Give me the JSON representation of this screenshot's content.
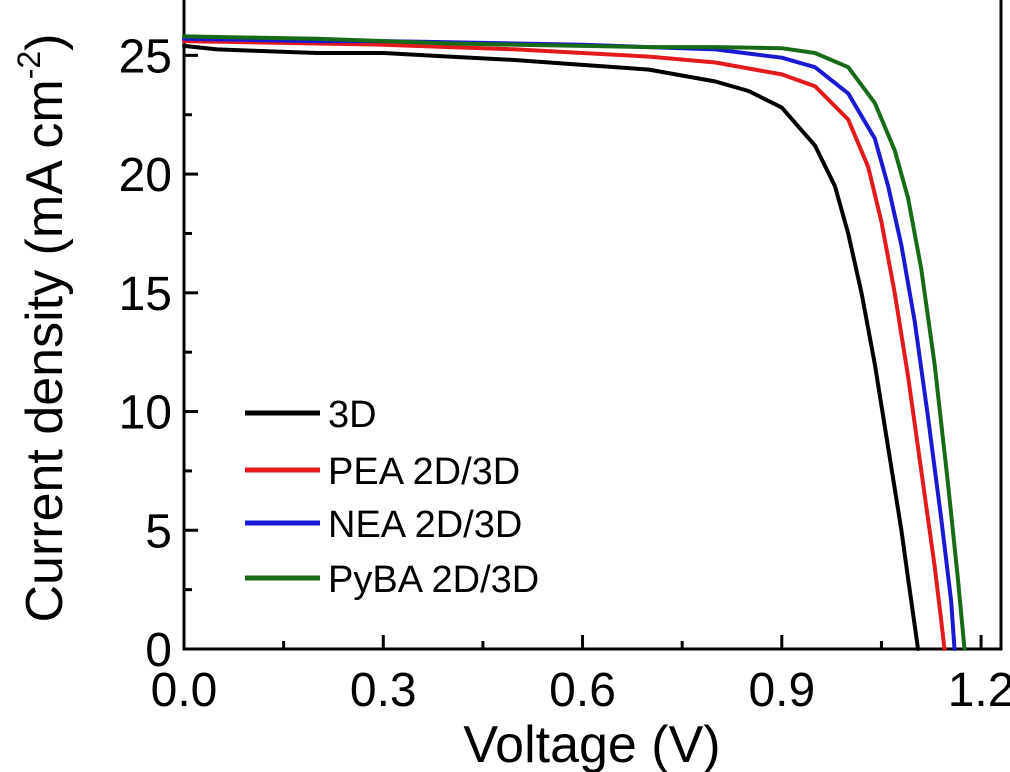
{
  "chart_data": {
    "type": "line",
    "title": "",
    "xlabel": "Voltage (V)",
    "ylabel": "Current density (mA cm",
    "ylabel_superscript": "-2",
    "ylabel_close": ")",
    "xlim": [
      0.0,
      1.23
    ],
    "ylim": [
      0,
      27.5
    ],
    "x_ticks": [
      0.0,
      0.3,
      0.6,
      0.9,
      1.2
    ],
    "x_tick_labels": [
      "0.0",
      "0.3",
      "0.6",
      "0.9",
      "1.2"
    ],
    "y_ticks": [
      0,
      5,
      10,
      15,
      20,
      25
    ],
    "y_tick_labels": [
      "0",
      "5",
      "10",
      "15",
      "20",
      "25"
    ],
    "grid": false,
    "legend_position": "bottom-left",
    "series": [
      {
        "name": "3D",
        "color": "#000000",
        "points": [
          [
            0.0,
            25.4
          ],
          [
            0.05,
            25.25
          ],
          [
            0.1,
            25.2
          ],
          [
            0.2,
            25.1
          ],
          [
            0.3,
            25.1
          ],
          [
            0.4,
            24.95
          ],
          [
            0.5,
            24.8
          ],
          [
            0.6,
            24.6
          ],
          [
            0.7,
            24.4
          ],
          [
            0.8,
            23.9
          ],
          [
            0.85,
            23.5
          ],
          [
            0.9,
            22.8
          ],
          [
            0.95,
            21.2
          ],
          [
            0.98,
            19.5
          ],
          [
            1.0,
            17.5
          ],
          [
            1.02,
            15.0
          ],
          [
            1.04,
            12.0
          ],
          [
            1.06,
            8.5
          ],
          [
            1.08,
            5.0
          ],
          [
            1.09,
            3.0
          ],
          [
            1.1,
            1.0
          ],
          [
            1.105,
            0.0
          ]
        ]
      },
      {
        "name": "PEA 2D/3D",
        "color": "#e3191c",
        "points": [
          [
            0.0,
            25.6
          ],
          [
            0.1,
            25.55
          ],
          [
            0.2,
            25.5
          ],
          [
            0.3,
            25.45
          ],
          [
            0.4,
            25.35
          ],
          [
            0.5,
            25.25
          ],
          [
            0.6,
            25.1
          ],
          [
            0.7,
            24.95
          ],
          [
            0.8,
            24.7
          ],
          [
            0.9,
            24.2
          ],
          [
            0.95,
            23.7
          ],
          [
            1.0,
            22.3
          ],
          [
            1.03,
            20.3
          ],
          [
            1.05,
            18.0
          ],
          [
            1.07,
            15.0
          ],
          [
            1.09,
            11.5
          ],
          [
            1.11,
            7.5
          ],
          [
            1.13,
            3.5
          ],
          [
            1.14,
            1.2
          ],
          [
            1.145,
            0.0
          ]
        ]
      },
      {
        "name": "NEA 2D/3D",
        "color": "#1919d4",
        "points": [
          [
            0.0,
            25.7
          ],
          [
            0.1,
            25.65
          ],
          [
            0.2,
            25.6
          ],
          [
            0.3,
            25.6
          ],
          [
            0.4,
            25.55
          ],
          [
            0.5,
            25.5
          ],
          [
            0.6,
            25.45
          ],
          [
            0.7,
            25.35
          ],
          [
            0.8,
            25.25
          ],
          [
            0.9,
            24.9
          ],
          [
            0.95,
            24.5
          ],
          [
            1.0,
            23.4
          ],
          [
            1.04,
            21.5
          ],
          [
            1.06,
            19.5
          ],
          [
            1.08,
            17.0
          ],
          [
            1.1,
            13.8
          ],
          [
            1.12,
            9.8
          ],
          [
            1.14,
            5.5
          ],
          [
            1.155,
            2.0
          ],
          [
            1.16,
            0.0
          ]
        ]
      },
      {
        "name": "PyBA 2D/3D",
        "color": "#176b17",
        "points": [
          [
            0.0,
            25.8
          ],
          [
            0.1,
            25.75
          ],
          [
            0.2,
            25.7
          ],
          [
            0.3,
            25.6
          ],
          [
            0.4,
            25.5
          ],
          [
            0.5,
            25.45
          ],
          [
            0.6,
            25.4
          ],
          [
            0.7,
            25.35
          ],
          [
            0.8,
            25.35
          ],
          [
            0.9,
            25.3
          ],
          [
            0.95,
            25.1
          ],
          [
            1.0,
            24.5
          ],
          [
            1.04,
            23.0
          ],
          [
            1.07,
            21.0
          ],
          [
            1.09,
            19.0
          ],
          [
            1.11,
            16.0
          ],
          [
            1.13,
            12.0
          ],
          [
            1.15,
            7.0
          ],
          [
            1.165,
            3.0
          ],
          [
            1.175,
            0.0
          ]
        ]
      }
    ]
  }
}
